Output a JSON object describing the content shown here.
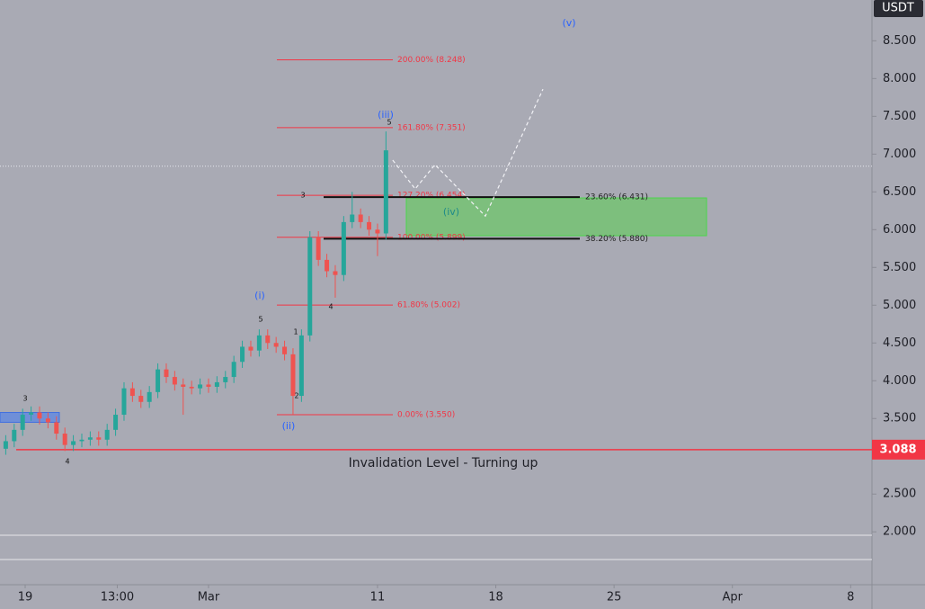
{
  "chart_data": {
    "type": "candlestick",
    "currency": "USDT",
    "x": [
      -12,
      -11.5,
      -11,
      -10.5,
      -10,
      -9.5,
      -9,
      -8.5,
      -8,
      -7.5,
      -7,
      -6.5,
      -6,
      -5.5,
      -5,
      -4.5,
      -4,
      -3.5,
      -3,
      -2.5,
      -2,
      -1.5,
      -1,
      -0.5,
      0,
      0.5,
      1,
      1.5,
      2,
      2.5,
      3,
      3.5,
      4,
      4.5,
      5,
      5.5,
      6,
      6.5,
      7,
      7.5,
      8,
      8.5,
      9,
      9.5,
      10,
      10.5
    ],
    "open": [
      3.1,
      3.2,
      3.35,
      3.55,
      3.58,
      3.5,
      3.45,
      3.3,
      3.15,
      3.2,
      3.22,
      3.25,
      3.22,
      3.35,
      3.55,
      3.9,
      3.8,
      3.72,
      3.85,
      4.15,
      4.05,
      3.95,
      3.92,
      3.9,
      3.95,
      3.92,
      3.98,
      4.05,
      4.25,
      4.45,
      4.4,
      4.6,
      4.5,
      4.45,
      4.35,
      3.8,
      4.6,
      5.9,
      5.6,
      5.45,
      5.4,
      6.1,
      6.2,
      6.1,
      6.0,
      5.95
    ],
    "high": [
      3.28,
      3.43,
      3.63,
      3.66,
      3.66,
      3.58,
      3.53,
      3.38,
      3.28,
      3.3,
      3.33,
      3.33,
      3.43,
      3.63,
      3.98,
      3.98,
      3.88,
      3.93,
      4.23,
      4.23,
      4.13,
      4.03,
      4.0,
      4.03,
      4.03,
      4.06,
      4.13,
      4.33,
      4.53,
      4.53,
      4.68,
      4.68,
      4.58,
      4.53,
      4.43,
      4.68,
      5.98,
      5.98,
      5.68,
      5.53,
      6.18,
      6.5,
      6.28,
      6.18,
      6.08,
      7.3
    ],
    "low": [
      3.02,
      3.12,
      3.27,
      3.47,
      3.42,
      3.37,
      3.22,
      3.07,
      3.07,
      3.12,
      3.14,
      3.14,
      3.14,
      3.27,
      3.47,
      3.72,
      3.64,
      3.64,
      3.77,
      3.97,
      3.87,
      3.55,
      3.82,
      3.82,
      3.84,
      3.84,
      3.9,
      3.97,
      4.17,
      4.32,
      4.32,
      4.42,
      4.37,
      4.27,
      3.55,
      3.72,
      4.52,
      5.52,
      5.37,
      5.1,
      5.32,
      6.02,
      6.02,
      5.92,
      5.65,
      5.87
    ],
    "close": [
      3.2,
      3.35,
      3.55,
      3.58,
      3.5,
      3.45,
      3.3,
      3.15,
      3.2,
      3.22,
      3.25,
      3.22,
      3.35,
      3.55,
      3.9,
      3.8,
      3.72,
      3.85,
      4.15,
      4.05,
      3.95,
      3.92,
      3.9,
      3.95,
      3.92,
      3.98,
      4.05,
      4.25,
      4.45,
      4.4,
      4.6,
      4.5,
      4.45,
      4.35,
      3.8,
      4.6,
      5.9,
      5.6,
      5.45,
      5.4,
      6.1,
      6.2,
      6.1,
      6.0,
      5.95,
      7.05
    ],
    "up_color": "#26a69a",
    "down_color": "#ef5350",
    "xlim": [
      -12.34,
      39.26
    ],
    "xticks": [
      {
        "value": -10.85,
        "label": "19"
      },
      {
        "value": -5.4,
        "label": "13:00"
      },
      {
        "value": 0,
        "label": "Mar"
      },
      {
        "value": 10,
        "label": "11"
      },
      {
        "value": 17,
        "label": "18"
      },
      {
        "value": 24,
        "label": "25"
      },
      {
        "value": 31,
        "label": "Apr"
      },
      {
        "value": 38,
        "label": "8"
      }
    ],
    "ylim": [
      1.3,
      9.04
    ],
    "yticks": [
      {
        "value": 2,
        "label": "2.000"
      },
      {
        "value": 2.5,
        "label": "2.500"
      },
      {
        "value": 3,
        "label": "3.000"
      },
      {
        "value": 3.5,
        "label": "3.500"
      },
      {
        "value": 4,
        "label": "4.000"
      },
      {
        "value": 4.5,
        "label": "4.500"
      },
      {
        "value": 5,
        "label": "5.000"
      },
      {
        "value": 5.5,
        "label": "5.500"
      },
      {
        "value": 6,
        "label": "6.000"
      },
      {
        "value": 6.5,
        "label": "6.500"
      },
      {
        "value": 7,
        "label": "7.000"
      },
      {
        "value": 7.5,
        "label": "7.500"
      },
      {
        "value": 8,
        "label": "8.000"
      },
      {
        "value": 8.5,
        "label": "8.500"
      }
    ],
    "fib_extension": [
      {
        "label": "200.00% (8.248)",
        "value": 8.248
      },
      {
        "label": "161.80% (7.351)",
        "value": 7.351
      },
      {
        "label": "127.20% (6.454)",
        "value": 6.454
      },
      {
        "label": "100.00% (5.899)",
        "value": 5.899
      },
      {
        "label": "61.80% (5.002)",
        "value": 5.002
      },
      {
        "label": "0.00% (3.550)",
        "value": 3.55
      }
    ],
    "fib_retracement": [
      {
        "label": "23.60% (6.431)",
        "value": 6.431
      },
      {
        "label": "38.20% (5.880)",
        "value": 5.88
      }
    ],
    "target_zone": {
      "top": 6.42,
      "bottom": 5.92,
      "color": "#7dbf7d"
    },
    "support_zone": {
      "top": 3.58,
      "bottom": 3.45,
      "color": "#6f8fd8"
    },
    "projection": {
      "x": [
        10.9,
        12.23,
        13.4,
        16.38,
        19.79
      ],
      "y": [
        6.92,
        6.54,
        6.86,
        6.18,
        7.86
      ]
    },
    "current_price": 6.84,
    "invalidation": {
      "value": 3.088,
      "text": "Invalidation Level - Turning up",
      "color": "#f23645"
    },
    "wave_labels": [
      "(v)",
      "(iii)",
      "(iv)",
      "(i)",
      "(ii)",
      "3",
      "4",
      "5",
      "1",
      "2",
      "3",
      "4",
      "5"
    ]
  }
}
